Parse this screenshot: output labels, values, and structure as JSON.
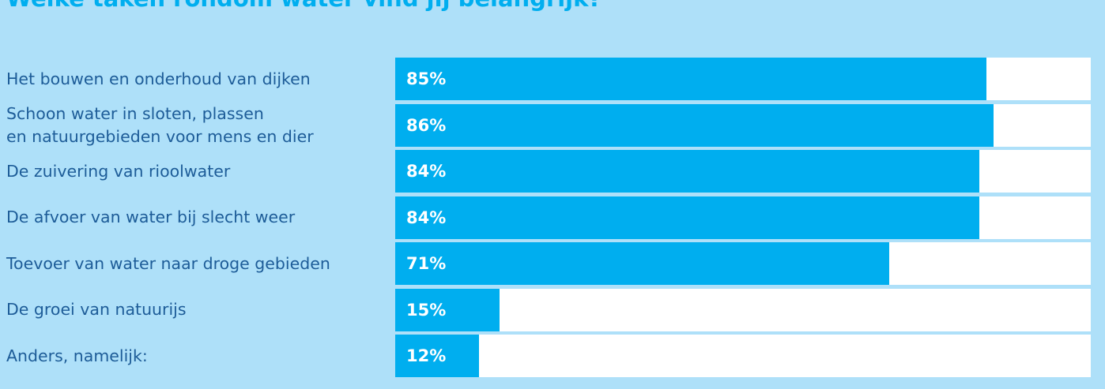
{
  "chart_data": {
    "type": "bar",
    "orientation": "horizontal",
    "title": "Welke taken rondom water vind jij belangrijk?",
    "categories": [
      "Het bouwen en onderhoud van dijken",
      "Schoon water in sloten, plassen\nen natuurgebieden voor mens en dier",
      "De zuivering van rioolwater",
      "De afvoer van water bij slecht weer",
      "Toevoer van water naar droge gebieden",
      "De groei van natuurijs",
      "Anders, namelijk:"
    ],
    "values": [
      85,
      86,
      84,
      84,
      71,
      15,
      12
    ],
    "value_labels": [
      "85%",
      "86%",
      "84%",
      "84%",
      "71%",
      "15%",
      "12%"
    ],
    "color": "#00aeef",
    "xlim": [
      0,
      100
    ]
  }
}
